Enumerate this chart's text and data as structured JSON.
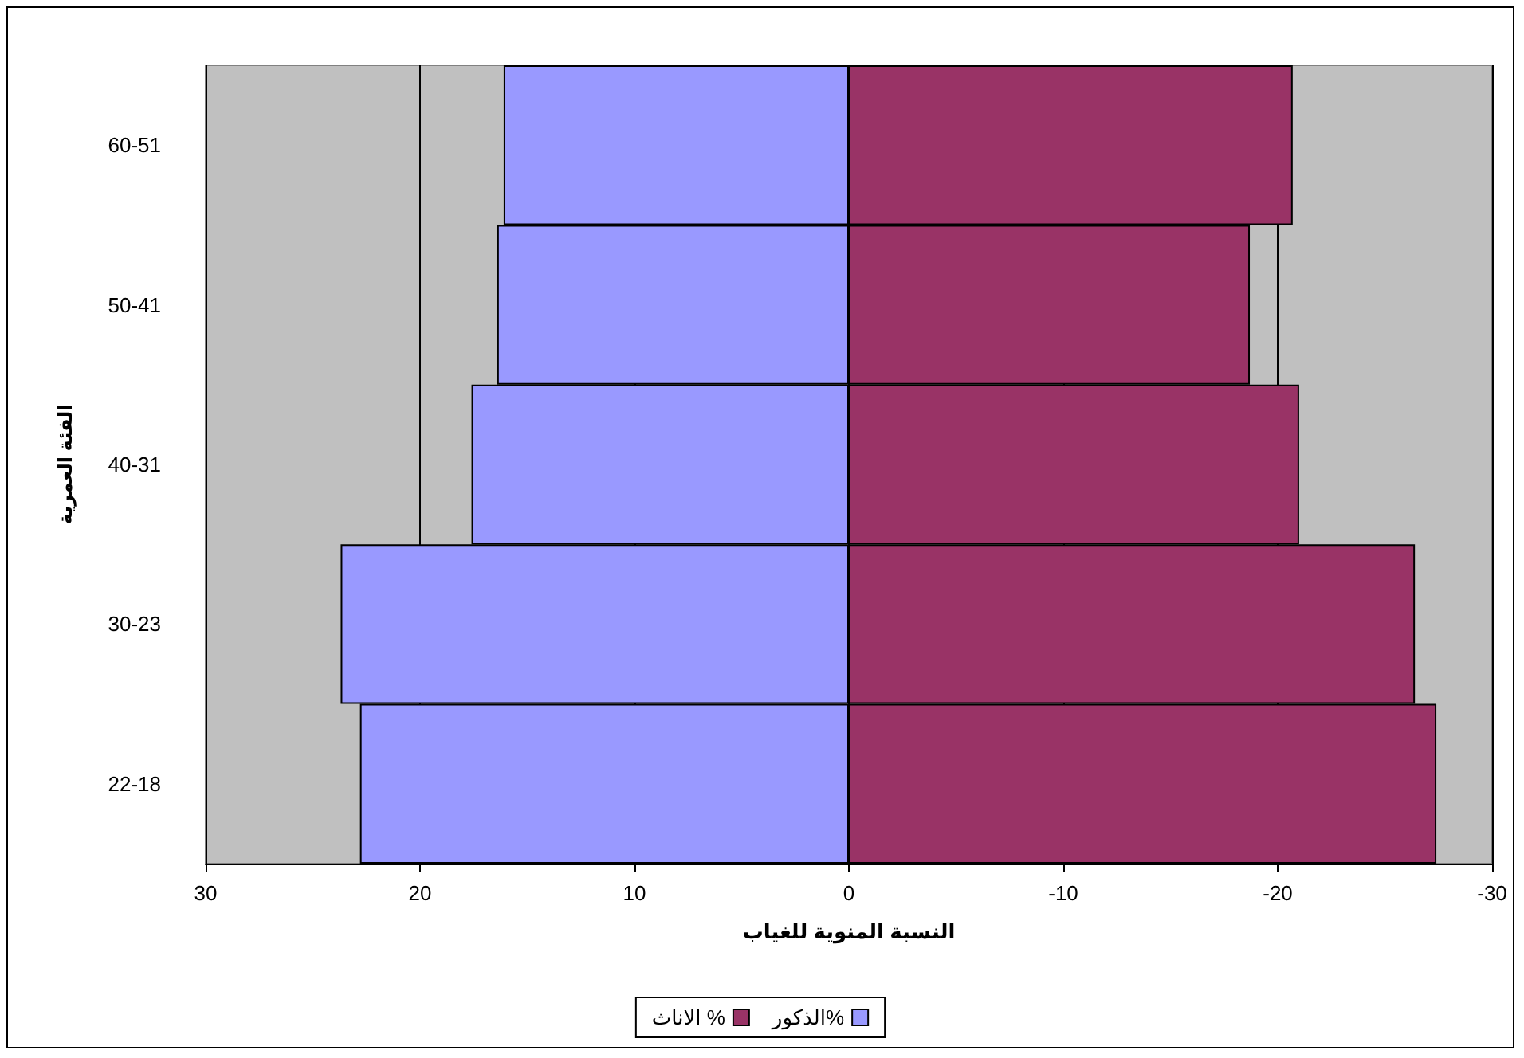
{
  "chart_data": {
    "type": "bar",
    "orientation": "horizontal",
    "xlabel": "النسبة المنوية للغياب",
    "ylabel": "الفئة العمرية",
    "categories": [
      "60-51",
      "50-41",
      "40-31",
      "30-23",
      "22-18"
    ],
    "series": [
      {
        "name": "الذكور%",
        "color": "#9999ff",
        "values": [
          16.1,
          16.4,
          17.6,
          23.7,
          22.8
        ]
      },
      {
        "name": "الاناث %",
        "color": "#993366",
        "values": [
          -20.7,
          -18.7,
          -21.0,
          -26.4,
          -27.4
        ]
      }
    ],
    "xlim": [
      30,
      -30
    ],
    "xticks": [
      30,
      20,
      10,
      0,
      -10,
      -20,
      -30
    ],
    "grid": "x",
    "legend": "bottom",
    "stacked": true
  }
}
